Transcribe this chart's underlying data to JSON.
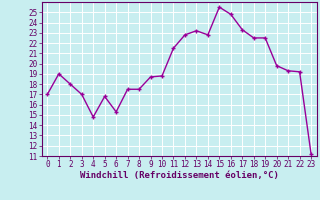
{
  "x": [
    0,
    1,
    2,
    3,
    4,
    5,
    6,
    7,
    8,
    9,
    10,
    11,
    12,
    13,
    14,
    15,
    16,
    17,
    18,
    19,
    20,
    21,
    22,
    23
  ],
  "y": [
    17.0,
    19.0,
    18.0,
    17.0,
    14.8,
    16.8,
    15.3,
    17.5,
    17.5,
    18.7,
    18.8,
    21.5,
    22.8,
    23.2,
    22.8,
    25.5,
    24.8,
    23.3,
    22.5,
    22.5,
    19.8,
    19.3,
    19.2,
    11.2
  ],
  "line_color": "#990099",
  "marker": "+",
  "marker_size": 3,
  "background_color": "#c8eef0",
  "grid_color": "#b0d8dc",
  "xlabel": "Windchill (Refroidissement éolien,°C)",
  "xlim": [
    -0.5,
    23.5
  ],
  "ylim": [
    11,
    26
  ],
  "yticks": [
    11,
    12,
    13,
    14,
    15,
    16,
    17,
    18,
    19,
    20,
    21,
    22,
    23,
    24,
    25
  ],
  "xticks": [
    0,
    1,
    2,
    3,
    4,
    5,
    6,
    7,
    8,
    9,
    10,
    11,
    12,
    13,
    14,
    15,
    16,
    17,
    18,
    19,
    20,
    21,
    22,
    23
  ],
  "tick_fontsize": 5.5,
  "xlabel_fontsize": 6.5,
  "line_width": 1.0,
  "spine_color": "#660066",
  "tick_color": "#660066",
  "label_color": "#660066"
}
